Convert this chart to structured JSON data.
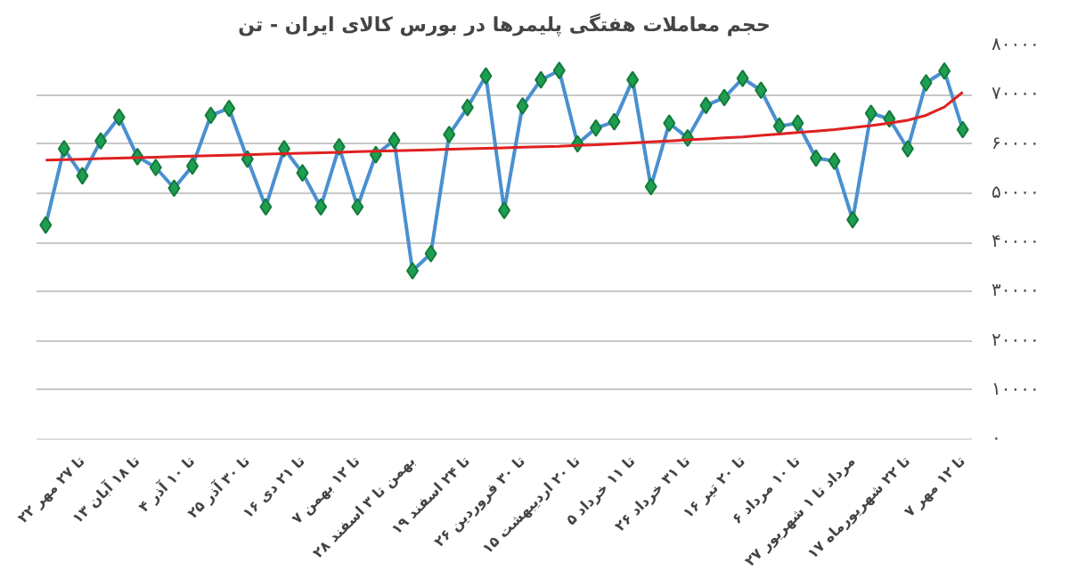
{
  "chart_data": {
    "type": "line",
    "title": "حجم معاملات هفتگی پلیمرها در بورس کالای ایران - تن",
    "categories": [
      null,
      null,
      "۲۲ تا ۲۷ مهر",
      null,
      null,
      "۱۳ تا ۱۸ آبان",
      null,
      null,
      "۴ تا ۱۰ آذر",
      null,
      null,
      "۲۵ تا ۳۰ آذر",
      null,
      null,
      "۱۶ تا ۲۱ دی",
      null,
      null,
      "۷ تا ۱۲ بهمن",
      null,
      null,
      "۲۸ بهمن تا ۳ اسفند",
      null,
      null,
      "۱۹ تا ۲۴ اسفند",
      null,
      null,
      "۲۶ تا ۳۰ فروردین",
      null,
      null,
      "۱۵ تا ۲۰ اردیبهشت",
      null,
      null,
      "۵ تا ۱۱ خرداد",
      null,
      null,
      "۲۶ تا ۳۱ خرداد",
      null,
      null,
      "۱۶ تا ۲۰ تیر",
      null,
      null,
      "۶ تا ۱۰ مرداد",
      null,
      null,
      "۲۷ مرداد تا ۱ شهریور",
      null,
      null,
      "۱۷ تا ۲۲ شهریورماه",
      null,
      null,
      "۷ تا ۱۲ مهر"
    ],
    "series": [
      {
        "color": "#4a90d0",
        "values": [
          43500,
          59000,
          53500,
          60600,
          65400,
          57400,
          55200,
          51000,
          55500,
          65800,
          67200,
          56900,
          47200,
          59000,
          54100,
          47200,
          59400,
          47200,
          57800,
          60700,
          34200,
          37700,
          61900,
          67400,
          73800,
          46500,
          67700,
          73000,
          74900,
          60000,
          63200,
          64500,
          73000,
          51300,
          64200,
          61200,
          67800,
          69400,
          73300,
          70900,
          63600,
          64200,
          57100,
          56500,
          44600,
          66200,
          65100,
          59000,
          72400,
          74800,
          62900
        ]
      },
      {
        "color": "#e02020",
        "values": [
          56700,
          56800,
          56900,
          57000,
          57100,
          57200,
          57300,
          57400,
          57500,
          57600,
          57700,
          57800,
          57900,
          58000,
          58100,
          58200,
          58300,
          58400,
          58500,
          58600,
          58700,
          58800,
          58900,
          59000,
          59100,
          59200,
          59300,
          59400,
          59500,
          59700,
          59800,
          60000,
          60200,
          60400,
          60600,
          60800,
          61000,
          61200,
          61400,
          61700,
          62000,
          62300,
          62600,
          62900,
          63300,
          63700,
          64200,
          64800,
          65800,
          67500,
          70500
        ],
        "marker": "none"
      }
    ],
    "ylim": [
      0,
      80000
    ],
    "yticks": [
      {
        "value": 0,
        "label": "۰"
      },
      {
        "value": 10000,
        "label": "۱۰۰۰۰"
      },
      {
        "value": 20000,
        "label": "۲۰۰۰۰"
      },
      {
        "value": 30000,
        "label": "۳۰۰۰۰"
      },
      {
        "value": 40000,
        "label": "۴۰۰۰۰"
      },
      {
        "value": 50000,
        "label": "۵۰۰۰۰"
      },
      {
        "value": 60000,
        "label": "۶۰۰۰۰"
      },
      {
        "value": 70000,
        "label": "۷۰۰۰۰"
      },
      {
        "value": 80000,
        "label": "۸۰۰۰۰"
      }
    ],
    "grid": "y",
    "marker": "diamond",
    "line_style": "solid"
  }
}
